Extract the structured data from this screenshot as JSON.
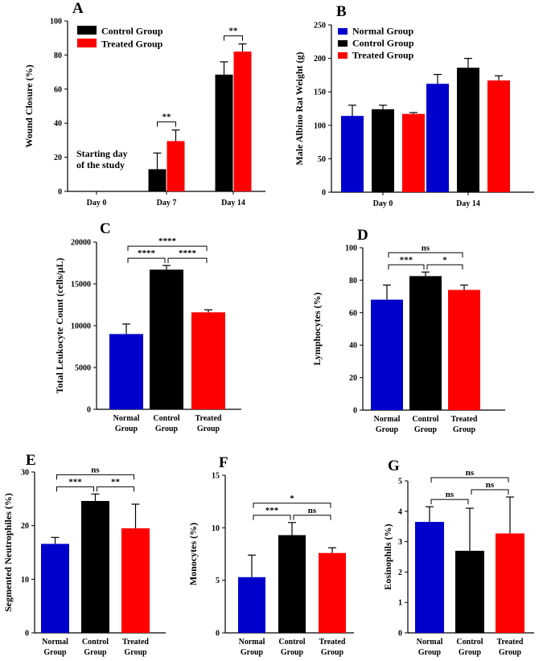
{
  "chart_data": [
    {
      "type": "bar",
      "panel": "A",
      "ylabel": "Wound Closure (%)",
      "ylim": [
        0,
        100
      ],
      "yticks": [
        0,
        20,
        40,
        60,
        80,
        100
      ],
      "categories": [
        "Day 0",
        "Day 7",
        "Day 14"
      ],
      "series": [
        {
          "name": "Control Group",
          "color": "#000000",
          "values": [
            0,
            13,
            68.5
          ],
          "errors": [
            0,
            9.5,
            7.5
          ]
        },
        {
          "name": "Treated Group",
          "color": "#ff0000",
          "values": [
            0,
            29.5,
            82
          ],
          "errors": [
            0,
            6.5,
            4.5
          ]
        }
      ],
      "legend": {
        "position": "top-left"
      },
      "annotations": [
        {
          "text": "Starting day",
          "category": 0
        },
        {
          "text": "of the study",
          "category": 0
        }
      ],
      "significance": [
        {
          "label": "**",
          "category": 1
        },
        {
          "label": "**",
          "category": 2
        }
      ]
    },
    {
      "type": "bar",
      "panel": "B",
      "ylabel": "Male Albino Rat Weight (g)",
      "ylim": [
        0,
        250
      ],
      "yticks": [
        0,
        50,
        100,
        150,
        200,
        250
      ],
      "categories": [
        "Day 0",
        "Day 14"
      ],
      "series": [
        {
          "name": "Normal Group",
          "color": "#0000cc",
          "values": [
            114,
            162
          ],
          "errors": [
            16,
            14
          ]
        },
        {
          "name": "Control Group",
          "color": "#000000",
          "values": [
            124,
            186
          ],
          "errors": [
            6,
            14
          ]
        },
        {
          "name": "Treated Group",
          "color": "#ff0000",
          "values": [
            117,
            167
          ],
          "errors": [
            2,
            7
          ]
        }
      ],
      "legend": {
        "position": "top-left"
      }
    },
    {
      "type": "bar",
      "panel": "C",
      "ylabel": "Total Leukocyte Count (cells/μL)",
      "ylim": [
        0,
        20000
      ],
      "yticks": [
        0,
        5000,
        10000,
        15000,
        20000
      ],
      "categories": [
        "Normal|Group",
        "Control|Group",
        "Treated|Group"
      ],
      "values": [
        9000,
        16700,
        11600
      ],
      "errors": [
        1200,
        500,
        300
      ],
      "colors": [
        "#0000cc",
        "#000000",
        "#ff0000"
      ],
      "significance": [
        {
          "label": "****",
          "from": 0,
          "to": 1,
          "level": 0
        },
        {
          "label": "****",
          "from": 1,
          "to": 2,
          "level": 0
        },
        {
          "label": "****",
          "from": 0,
          "to": 2,
          "level": 1
        }
      ]
    },
    {
      "type": "bar",
      "panel": "D",
      "ylabel": "Lymphocytes (%)",
      "ylim": [
        0,
        100
      ],
      "yticks": [
        0,
        20,
        40,
        60,
        80,
        100
      ],
      "categories": [
        "Normal|Group",
        "Control|Group",
        "Treated|Group"
      ],
      "values": [
        68,
        82.5,
        74
      ],
      "errors": [
        9,
        2.5,
        3
      ],
      "colors": [
        "#0000cc",
        "#000000",
        "#ff0000"
      ],
      "significance": [
        {
          "label": "***",
          "from": 0,
          "to": 1,
          "level": 0
        },
        {
          "label": "*",
          "from": 1,
          "to": 2,
          "level": 0
        },
        {
          "label": "ns",
          "from": 0,
          "to": 2,
          "level": 1
        }
      ]
    },
    {
      "type": "bar",
      "panel": "E",
      "ylabel": "Segmented Neutrophiles (%)",
      "ylim": [
        0,
        30
      ],
      "yticks": [
        0,
        10,
        20,
        30
      ],
      "categories": [
        "Normal|Group",
        "Control|Group",
        "Treated|Group"
      ],
      "values": [
        16.6,
        24.6,
        19.5
      ],
      "errors": [
        1.2,
        1.3,
        4.5
      ],
      "colors": [
        "#0000cc",
        "#000000",
        "#ff0000"
      ],
      "significance": [
        {
          "label": "***",
          "from": 0,
          "to": 1,
          "level": 0
        },
        {
          "label": "**",
          "from": 1,
          "to": 2,
          "level": 0
        },
        {
          "label": "ns",
          "from": 0,
          "to": 2,
          "level": 1
        }
      ]
    },
    {
      "type": "bar",
      "panel": "F",
      "ylabel": "Monocytes (%)",
      "ylim": [
        0,
        15
      ],
      "yticks": [
        0,
        5,
        10,
        15
      ],
      "categories": [
        "Normal|Group",
        "Control|Group",
        "Treated|Group"
      ],
      "values": [
        5.3,
        9.3,
        7.6
      ],
      "errors": [
        2.1,
        1.2,
        0.5
      ],
      "colors": [
        "#0000cc",
        "#000000",
        "#ff0000"
      ],
      "significance": [
        {
          "label": "***",
          "from": 0,
          "to": 1,
          "level": 0
        },
        {
          "label": "ns",
          "from": 1,
          "to": 2,
          "level": 0
        },
        {
          "label": "*",
          "from": 0,
          "to": 2,
          "level": 1
        }
      ]
    },
    {
      "type": "bar",
      "panel": "G",
      "ylabel": "Eosinophils (%)",
      "ylim": [
        0,
        5
      ],
      "yticks": [
        0,
        1,
        2,
        3,
        4,
        5
      ],
      "categories": [
        "Normal|Group",
        "Control|Group",
        "Treated|Group"
      ],
      "values": [
        3.65,
        2.7,
        3.27
      ],
      "errors": [
        0.5,
        1.4,
        1.2
      ],
      "colors": [
        "#0000cc",
        "#000000",
        "#ff0000"
      ],
      "significance": [
        {
          "label": "ns",
          "from": 0,
          "to": 1,
          "level": 0
        },
        {
          "label": "ns",
          "from": 1,
          "to": 2,
          "level": 0
        },
        {
          "label": "ns",
          "from": 0,
          "to": 2,
          "level": 1
        }
      ]
    }
  ]
}
